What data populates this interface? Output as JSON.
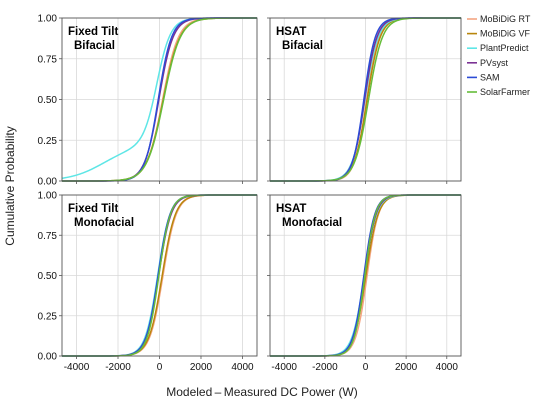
{
  "figure": {
    "ylabel": "Cumulative Probability",
    "xlabel": "Modeled – Measured DC Power (W)"
  },
  "legend": {
    "placement": "right",
    "entries": [
      {
        "name": "MoBiDiG RT",
        "color": "#f4a582"
      },
      {
        "name": "MoBiDiG VF",
        "color": "#b8860b"
      },
      {
        "name": "PlantPredict",
        "color": "#5ee6e6"
      },
      {
        "name": "PVsyst",
        "color": "#7b3294"
      },
      {
        "name": "SAM",
        "color": "#2c4bd6"
      },
      {
        "name": "SolarFarmer",
        "color": "#66bd3a"
      }
    ]
  },
  "chart_data": [
    {
      "type": "line",
      "title_lines": [
        "Fixed Tilt",
        "Bifacial"
      ],
      "xlim": [
        -4700,
        4700
      ],
      "ylim": [
        0,
        1
      ],
      "xticks": [
        "-4000",
        "-2000",
        "0",
        "2000",
        "4000"
      ],
      "xtick_values": [
        -4000,
        -2000,
        0,
        2000,
        4000
      ],
      "yticks": [
        "0.00",
        "0.25",
        "0.50",
        "0.75",
        "1.00"
      ],
      "ytick_values": [
        0,
        0.25,
        0.5,
        0.75,
        1
      ],
      "show_xtick_labels": false,
      "grid": true,
      "series": [
        {
          "name": "MoBiDiG RT",
          "median": 150,
          "spread": 380
        },
        {
          "name": "MoBiDiG VF",
          "median": 180,
          "spread": 400
        },
        {
          "name": "PlantPredict",
          "median": -120,
          "spread": 330,
          "tail_fraction": 0.22,
          "tail_median": -2700,
          "tail_spread": 800
        },
        {
          "name": "PVsyst",
          "median": -30,
          "spread": 340
        },
        {
          "name": "SAM",
          "median": -60,
          "spread": 320
        },
        {
          "name": "SolarFarmer",
          "median": 200,
          "spread": 400
        }
      ]
    },
    {
      "type": "line",
      "title_lines": [
        "HSAT",
        "Bifacial"
      ],
      "xlim": [
        -4700,
        4700
      ],
      "ylim": [
        0,
        1
      ],
      "xticks": [
        "-4000",
        "-2000",
        "0",
        "2000",
        "4000"
      ],
      "xtick_values": [
        -4000,
        -2000,
        0,
        2000,
        4000
      ],
      "yticks": [
        "0.00",
        "0.25",
        "0.50",
        "0.75",
        "1.00"
      ],
      "ytick_values": [
        0,
        0.25,
        0.5,
        0.75,
        1
      ],
      "show_xtick_labels": false,
      "grid": true,
      "series": [
        {
          "name": "MoBiDiG RT",
          "median": 60,
          "spread": 300
        },
        {
          "name": "MoBiDiG VF",
          "median": 80,
          "spread": 320
        },
        {
          "name": "PlantPredict",
          "median": -20,
          "spread": 320
        },
        {
          "name": "PVsyst",
          "median": -40,
          "spread": 300
        },
        {
          "name": "SAM",
          "median": -80,
          "spread": 280
        },
        {
          "name": "SolarFarmer",
          "median": 150,
          "spread": 340
        }
      ]
    },
    {
      "type": "line",
      "title_lines": [
        "Fixed Tilt",
        "Monofacial"
      ],
      "xlim": [
        -4700,
        4700
      ],
      "ylim": [
        0,
        1
      ],
      "xticks": [
        "-4000",
        "-2000",
        "0",
        "2000",
        "4000"
      ],
      "xtick_values": [
        -4000,
        -2000,
        0,
        2000,
        4000
      ],
      "yticks": [
        "0.00",
        "0.25",
        "0.50",
        "0.75",
        "1.00"
      ],
      "ytick_values": [
        0,
        0.25,
        0.5,
        0.75,
        1
      ],
      "show_xtick_labels": true,
      "grid": true,
      "series": [
        {
          "name": "MoBiDiG RT",
          "median": 170,
          "spread": 320
        },
        {
          "name": "MoBiDiG VF",
          "median": 130,
          "spread": 320
        },
        {
          "name": "PlantPredict",
          "median": -90,
          "spread": 300
        },
        {
          "name": "PVsyst",
          "median": -40,
          "spread": 300
        },
        {
          "name": "SAM",
          "median": -70,
          "spread": 290
        },
        {
          "name": "SolarFarmer",
          "median": -30,
          "spread": 280
        }
      ]
    },
    {
      "type": "line",
      "title_lines": [
        "HSAT",
        "Monofacial"
      ],
      "xlim": [
        -4700,
        4700
      ],
      "ylim": [
        0,
        1
      ],
      "xticks": [
        "-4000",
        "-2000",
        "0",
        "2000",
        "4000"
      ],
      "xtick_values": [
        -4000,
        -2000,
        0,
        2000,
        4000
      ],
      "yticks": [
        "0.00",
        "0.25",
        "0.50",
        "0.75",
        "1.00"
      ],
      "ytick_values": [
        0,
        0.25,
        0.5,
        0.75,
        1
      ],
      "show_xtick_labels": true,
      "grid": true,
      "series": [
        {
          "name": "MoBiDiG RT",
          "median": 80,
          "spread": 280
        },
        {
          "name": "MoBiDiG VF",
          "median": 20,
          "spread": 300
        },
        {
          "name": "PlantPredict",
          "median": -60,
          "spread": 300
        },
        {
          "name": "PVsyst",
          "median": -40,
          "spread": 280
        },
        {
          "name": "SAM",
          "median": -80,
          "spread": 270
        },
        {
          "name": "SolarFarmer",
          "median": -30,
          "spread": 260
        }
      ]
    }
  ]
}
